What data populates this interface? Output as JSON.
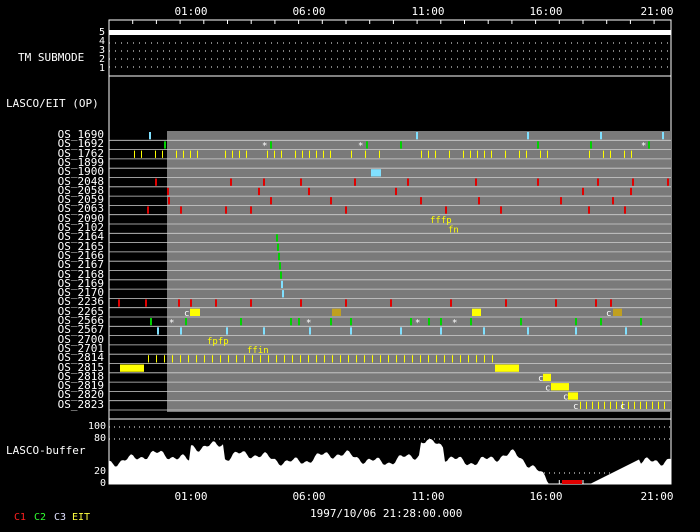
{
  "time_axis": {
    "ticks": [
      "01:00",
      "06:00",
      "11:00",
      "16:00",
      "21:00"
    ],
    "timestamp": "1997/10/06 21:28:00.000"
  },
  "tm_submode": {
    "label": "TM SUBMODE",
    "levels": [
      "5",
      "4",
      "3",
      "2",
      "1"
    ]
  },
  "lasco_eit": {
    "label": "LASCO/EIT (OP)"
  },
  "os_rows": [
    "OS_1690",
    "OS_1692",
    "OS_1762",
    "OS_1899",
    "OS_1900",
    "OS_2048",
    "OS_2058",
    "OS_2059",
    "OS_2063",
    "OS_2090",
    "OS_2102",
    "OS_2164",
    "OS_2165",
    "OS_2166",
    "OS_2167",
    "OS_2168",
    "OS_2169",
    "OS_2170",
    "OS_2236",
    "OS_2265",
    "OS_2566",
    "OS_2567",
    "OS_2700",
    "OS_2701",
    "OS_2814",
    "OS_2815",
    "OS_2818",
    "OS_2819",
    "OS_2820",
    "OS_2823"
  ],
  "buffer": {
    "label": "LASCO-buffer",
    "levels": [
      "100",
      "80",
      "20",
      "0"
    ]
  },
  "legend": [
    {
      "text": "C1",
      "color": "#ff2020"
    },
    {
      "text": "C2",
      "color": "#30ff30"
    },
    {
      "text": "C3",
      "color": "#e0e0ff"
    },
    {
      "text": "EIT",
      "color": "#ffff40"
    }
  ],
  "colors": {
    "gray_band": "#7a7a7a",
    "yellow": "#ffff00",
    "red": "#e00000",
    "green": "#00d000",
    "cyan": "#80e0ff"
  }
}
